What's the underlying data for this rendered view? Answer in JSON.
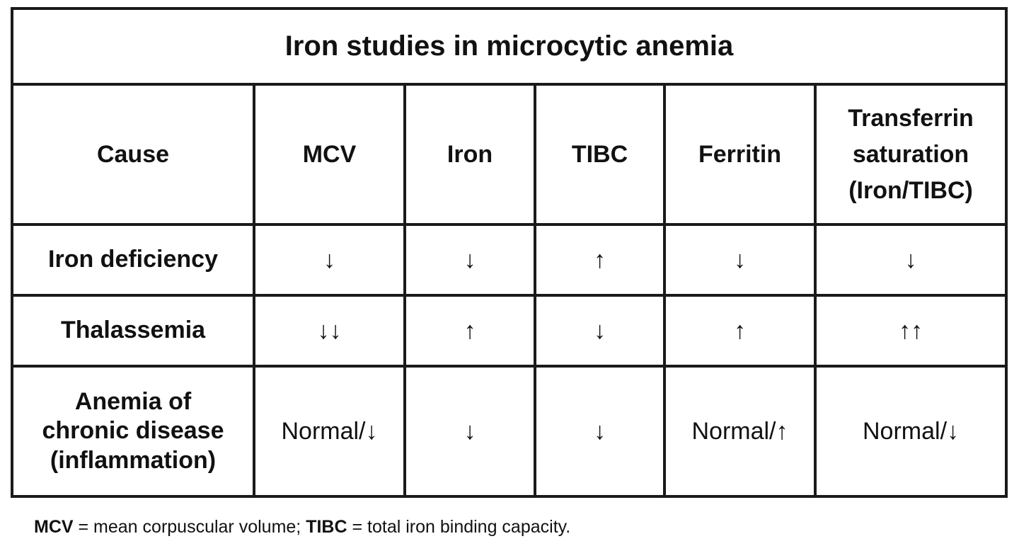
{
  "title": "Iron studies in microcytic anemia",
  "headers": [
    {
      "lines": [
        "Cause"
      ]
    },
    {
      "lines": [
        "MCV"
      ]
    },
    {
      "lines": [
        "Iron"
      ]
    },
    {
      "lines": [
        "TIBC"
      ]
    },
    {
      "lines": [
        "Ferritin"
      ]
    },
    {
      "lines": [
        "Transferrin",
        "saturation",
        "(Iron/TIBC)"
      ]
    }
  ],
  "rows": [
    {
      "cause_lines": [
        "Iron deficiency"
      ],
      "values": [
        "↓",
        "↓",
        "↑",
        "↓",
        "↓"
      ]
    },
    {
      "cause_lines": [
        "Thalassemia"
      ],
      "values": [
        "↓↓",
        "↑",
        "↓",
        "↑",
        "↑↑"
      ]
    },
    {
      "cause_lines": [
        "Anemia of",
        "chronic disease",
        "(inflammation)"
      ],
      "values": [
        "Normal/↓",
        "↓",
        "↓",
        "Normal/↑",
        "Normal/↓"
      ]
    }
  ],
  "footnote": {
    "abbr1": "MCV",
    "def1": " = mean corpuscular volume; ",
    "abbr2": "TIBC",
    "def2": " = total iron binding capacity."
  }
}
